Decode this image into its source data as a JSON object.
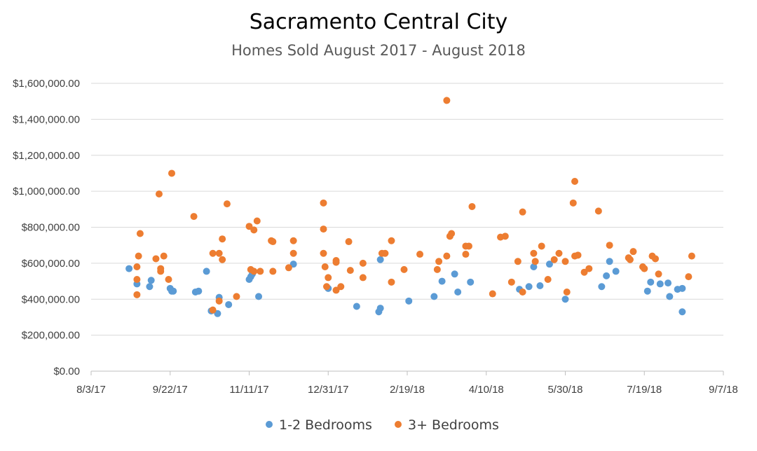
{
  "chart_data": {
    "type": "scatter",
    "title": "Sacramento Central City",
    "subtitle": "Homes Sold August 2017 - August 2018",
    "xlabel": "",
    "ylabel": "",
    "x_ticks": [
      "8/3/17",
      "9/22/17",
      "11/11/17",
      "12/31/17",
      "2/19/18",
      "4/10/18",
      "5/30/18",
      "7/19/18",
      "9/7/18"
    ],
    "y_ticks": [
      "$0.00",
      "$200,000.00",
      "$400,000.00",
      "$600,000.00",
      "$800,000.00",
      "$1,000,000.00",
      "$1,200,000.00",
      "$1,400,000.00",
      "$1,600,000.00"
    ],
    "xlim": [
      "2017-08-03",
      "2018-09-07"
    ],
    "ylim": [
      0,
      1600000
    ],
    "grid": "horizontal",
    "legend_position": "bottom",
    "series": [
      {
        "name": "1-2 Bedrooms",
        "color": "#5b9bd5",
        "points": [
          [
            "2017-08-27",
            570000
          ],
          [
            "2017-09-01",
            485000
          ],
          [
            "2017-09-09",
            470000
          ],
          [
            "2017-09-10",
            505000
          ],
          [
            "2017-09-22",
            460000
          ],
          [
            "2017-09-23",
            445000
          ],
          [
            "2017-09-24",
            445000
          ],
          [
            "2017-10-08",
            440000
          ],
          [
            "2017-10-10",
            445000
          ],
          [
            "2017-10-15",
            555000
          ],
          [
            "2017-10-18",
            335000
          ],
          [
            "2017-10-22",
            320000
          ],
          [
            "2017-10-23",
            410000
          ],
          [
            "2017-10-29",
            370000
          ],
          [
            "2017-11-11",
            510000
          ],
          [
            "2017-11-12",
            525000
          ],
          [
            "2017-11-13",
            540000
          ],
          [
            "2017-11-17",
            415000
          ],
          [
            "2017-12-09",
            595000
          ],
          [
            "2017-12-31",
            460000
          ],
          [
            "2018-01-18",
            360000
          ],
          [
            "2018-02-01",
            330000
          ],
          [
            "2018-02-02",
            350000
          ],
          [
            "2018-02-02",
            620000
          ],
          [
            "2018-02-20",
            390000
          ],
          [
            "2018-03-08",
            415000
          ],
          [
            "2018-03-13",
            500000
          ],
          [
            "2018-03-21",
            540000
          ],
          [
            "2018-03-23",
            440000
          ],
          [
            "2018-03-31",
            495000
          ],
          [
            "2018-05-01",
            455000
          ],
          [
            "2018-05-07",
            470000
          ],
          [
            "2018-05-10",
            580000
          ],
          [
            "2018-05-14",
            475000
          ],
          [
            "2018-05-20",
            595000
          ],
          [
            "2018-05-30",
            400000
          ],
          [
            "2018-06-22",
            470000
          ],
          [
            "2018-06-25",
            530000
          ],
          [
            "2018-06-27",
            610000
          ],
          [
            "2018-07-01",
            555000
          ],
          [
            "2018-07-21",
            445000
          ],
          [
            "2018-07-23",
            495000
          ],
          [
            "2018-07-29",
            485000
          ],
          [
            "2018-08-03",
            490000
          ],
          [
            "2018-08-04",
            415000
          ],
          [
            "2018-08-09",
            455000
          ],
          [
            "2018-08-12",
            460000
          ],
          [
            "2018-08-12",
            330000
          ]
        ]
      },
      {
        "name": "3+ Bedrooms",
        "color": "#ed7d31",
        "points": [
          [
            "2017-09-01",
            580000
          ],
          [
            "2017-09-01",
            510000
          ],
          [
            "2017-09-01",
            425000
          ],
          [
            "2017-09-02",
            640000
          ],
          [
            "2017-09-03",
            765000
          ],
          [
            "2017-09-13",
            625000
          ],
          [
            "2017-09-15",
            985000
          ],
          [
            "2017-09-16",
            570000
          ],
          [
            "2017-09-16",
            555000
          ],
          [
            "2017-09-18",
            640000
          ],
          [
            "2017-09-21",
            510000
          ],
          [
            "2017-09-23",
            1100000
          ],
          [
            "2017-10-07",
            860000
          ],
          [
            "2017-10-19",
            655000
          ],
          [
            "2017-10-19",
            340000
          ],
          [
            "2017-10-23",
            655000
          ],
          [
            "2017-10-23",
            390000
          ],
          [
            "2017-10-25",
            735000
          ],
          [
            "2017-10-25",
            620000
          ],
          [
            "2017-10-28",
            930000
          ],
          [
            "2017-11-03",
            415000
          ],
          [
            "2017-11-11",
            805000
          ],
          [
            "2017-11-12",
            565000
          ],
          [
            "2017-11-14",
            785000
          ],
          [
            "2017-11-14",
            555000
          ],
          [
            "2017-11-16",
            835000
          ],
          [
            "2017-11-18",
            555000
          ],
          [
            "2017-11-25",
            725000
          ],
          [
            "2017-11-26",
            720000
          ],
          [
            "2017-11-26",
            555000
          ],
          [
            "2017-12-06",
            575000
          ],
          [
            "2017-12-09",
            725000
          ],
          [
            "2017-12-09",
            655000
          ],
          [
            "2017-12-28",
            935000
          ],
          [
            "2017-12-28",
            790000
          ],
          [
            "2017-12-28",
            655000
          ],
          [
            "2017-12-29",
            580000
          ],
          [
            "2017-12-30",
            470000
          ],
          [
            "2017-12-31",
            520000
          ],
          [
            "2018-01-05",
            615000
          ],
          [
            "2018-01-05",
            605000
          ],
          [
            "2018-01-05",
            450000
          ],
          [
            "2018-01-08",
            470000
          ],
          [
            "2018-01-13",
            720000
          ],
          [
            "2018-01-14",
            560000
          ],
          [
            "2018-01-22",
            520000
          ],
          [
            "2018-01-22",
            600000
          ],
          [
            "2018-02-03",
            655000
          ],
          [
            "2018-02-05",
            655000
          ],
          [
            "2018-02-09",
            495000
          ],
          [
            "2018-02-09",
            725000
          ],
          [
            "2018-02-17",
            565000
          ],
          [
            "2018-02-27",
            650000
          ],
          [
            "2018-03-10",
            565000
          ],
          [
            "2018-03-11",
            610000
          ],
          [
            "2018-03-16",
            640000
          ],
          [
            "2018-03-16",
            1505000
          ],
          [
            "2018-03-18",
            750000
          ],
          [
            "2018-03-19",
            765000
          ],
          [
            "2018-03-28",
            695000
          ],
          [
            "2018-03-28",
            650000
          ],
          [
            "2018-03-30",
            695000
          ],
          [
            "2018-04-01",
            915000
          ],
          [
            "2018-04-14",
            430000
          ],
          [
            "2018-04-19",
            745000
          ],
          [
            "2018-04-22",
            750000
          ],
          [
            "2018-04-26",
            495000
          ],
          [
            "2018-04-30",
            610000
          ],
          [
            "2018-05-03",
            885000
          ],
          [
            "2018-05-03",
            440000
          ],
          [
            "2018-05-10",
            655000
          ],
          [
            "2018-05-11",
            610000
          ],
          [
            "2018-05-15",
            695000
          ],
          [
            "2018-05-19",
            510000
          ],
          [
            "2018-05-23",
            620000
          ],
          [
            "2018-05-26",
            655000
          ],
          [
            "2018-05-30",
            610000
          ],
          [
            "2018-05-31",
            440000
          ],
          [
            "2018-06-04",
            935000
          ],
          [
            "2018-06-05",
            1055000
          ],
          [
            "2018-06-05",
            640000
          ],
          [
            "2018-06-07",
            645000
          ],
          [
            "2018-06-11",
            550000
          ],
          [
            "2018-06-14",
            570000
          ],
          [
            "2018-06-20",
            890000
          ],
          [
            "2018-06-27",
            700000
          ],
          [
            "2018-07-09",
            630000
          ],
          [
            "2018-07-10",
            620000
          ],
          [
            "2018-07-12",
            665000
          ],
          [
            "2018-07-18",
            580000
          ],
          [
            "2018-07-19",
            570000
          ],
          [
            "2018-07-24",
            640000
          ],
          [
            "2018-07-26",
            625000
          ],
          [
            "2018-07-28",
            540000
          ],
          [
            "2018-08-16",
            525000
          ],
          [
            "2018-08-18",
            640000
          ]
        ]
      }
    ]
  }
}
